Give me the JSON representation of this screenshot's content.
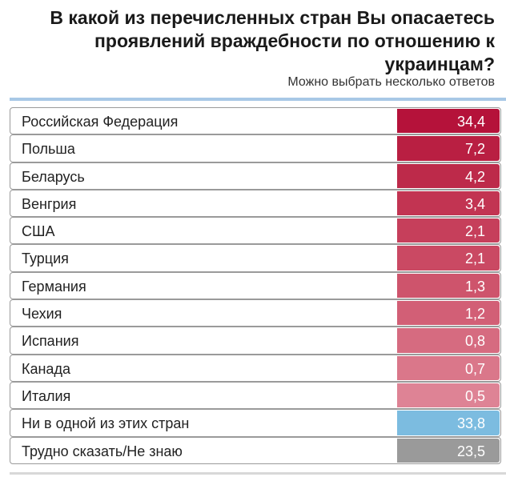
{
  "chart_data": {
    "type": "table",
    "title": "В какой из перечисленных стран Вы опасаетесь проявлений враждебности по отношению к украинцам?",
    "subtitle": "Можно выбрать несколько ответов",
    "rows": [
      {
        "label": "Российская Федерация",
        "value": "34,4",
        "color": "#b5123a"
      },
      {
        "label": "Польша",
        "value": "7,2",
        "color": "#b91f42"
      },
      {
        "label": "Беларусь",
        "value": "4,2",
        "color": "#bd2a4a"
      },
      {
        "label": "Венгрия",
        "value": "3,4",
        "color": "#c23452"
      },
      {
        "label": "США",
        "value": "2,1",
        "color": "#c63f5b"
      },
      {
        "label": "Турция",
        "value": "2,1",
        "color": "#ca4963"
      },
      {
        "label": "Германия",
        "value": "1,3",
        "color": "#ce546c"
      },
      {
        "label": "Чехия",
        "value": "1,2",
        "color": "#d25f76"
      },
      {
        "label": "Испания",
        "value": "0,8",
        "color": "#d66b80"
      },
      {
        "label": "Канада",
        "value": "0,7",
        "color": "#da778a"
      },
      {
        "label": "Италия",
        "value": "0,5",
        "color": "#de8395"
      },
      {
        "label": "Ни в одной из этих стран",
        "value": "33,8",
        "color": "#7cbce0"
      },
      {
        "label": "Трудно сказать/Не знаю",
        "value": "23,5",
        "color": "#9a9a9a"
      }
    ]
  }
}
